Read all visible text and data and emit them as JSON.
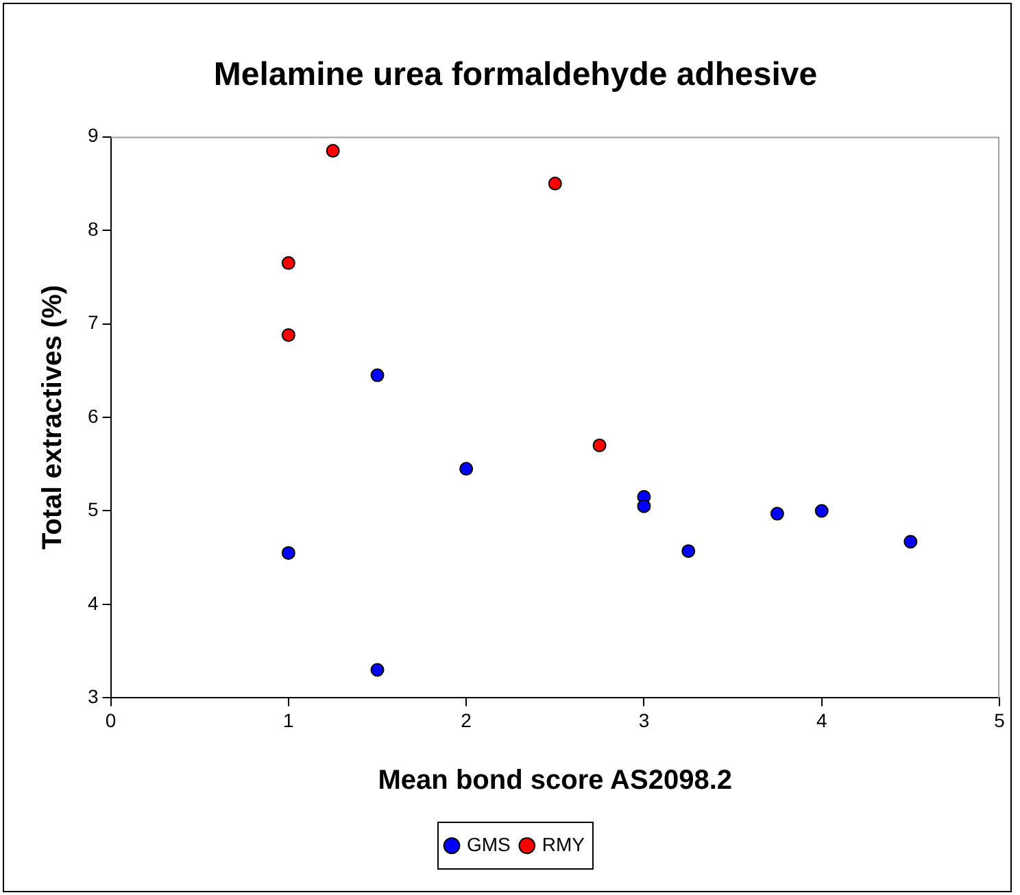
{
  "chart_data": {
    "type": "scatter",
    "title": "Melamine urea formaldehyde adhesive",
    "xlabel": "Mean bond score AS2098.2",
    "ylabel": "Total extractives (%)",
    "xlim": [
      0,
      5
    ],
    "xticks": [
      0,
      1,
      2,
      3,
      4,
      5
    ],
    "ylim": [
      3,
      9
    ],
    "yticks": [
      3,
      4,
      5,
      6,
      7,
      8,
      9
    ],
    "grid": false,
    "legend": "bottom",
    "marker": "circle",
    "series": [
      {
        "name": "GMS",
        "color": "#0000ff",
        "x": [
          1,
          1.5,
          1.5,
          2,
          3,
          3,
          3.25,
          3.75,
          4,
          4.5
        ],
        "values": [
          4.55,
          6.45,
          3.3,
          5.45,
          5.15,
          5.05,
          4.57,
          4.97,
          5.0,
          4.67
        ]
      },
      {
        "name": "RMY",
        "color": "#ff0000",
        "x": [
          1,
          1,
          1.25,
          2.5,
          2.75
        ],
        "values": [
          7.65,
          6.88,
          8.85,
          8.5,
          5.7
        ]
      }
    ]
  }
}
